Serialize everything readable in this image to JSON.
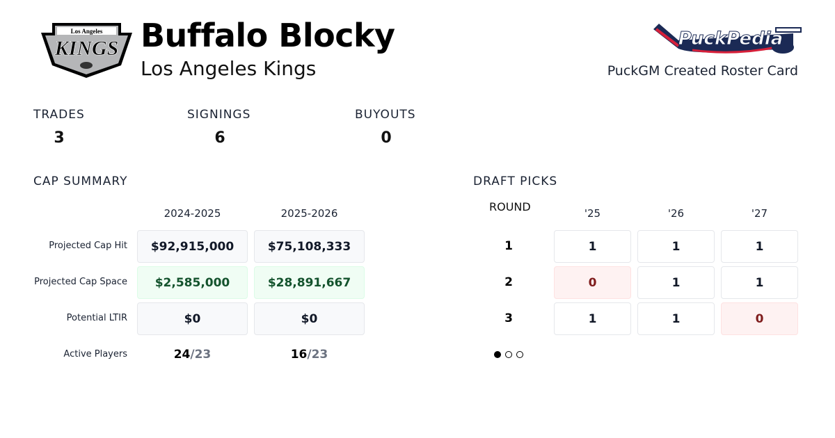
{
  "header": {
    "player_name": "Buffalo Blocky",
    "team_name": "Los Angeles Kings",
    "team_logo": {
      "icon": "kings-logo",
      "text_top": "Los Angeles",
      "text_main": "KINGS"
    },
    "brand_logo": {
      "icon": "puckpedia-logo",
      "text": "PuckPedia",
      "colors": {
        "navy": "#1b2a55",
        "red": "#d6203a"
      }
    },
    "card_label": "PuckGM Created Roster Card"
  },
  "stats": [
    {
      "label": "TRADES",
      "value": "3"
    },
    {
      "label": "SIGNINGS",
      "value": "6"
    },
    {
      "label": "BUYOUTS",
      "value": "0"
    }
  ],
  "cap_summary": {
    "title": "CAP SUMMARY",
    "seasons": [
      "2024-2025",
      "2025-2026"
    ],
    "rows": [
      {
        "label": "Projected Cap Hit",
        "values": [
          "$92,915,000",
          "$75,108,333"
        ],
        "style": "neutral"
      },
      {
        "label": "Projected Cap Space",
        "values": [
          "$2,585,000",
          "$28,891,667"
        ],
        "style": "positive"
      },
      {
        "label": "Potential LTIR",
        "values": [
          "$0",
          "$0"
        ],
        "style": "neutral"
      }
    ],
    "active_players": {
      "label": "Active Players",
      "values": [
        {
          "count": "24",
          "max": "/23"
        },
        {
          "count": "16",
          "max": "/23"
        }
      ]
    }
  },
  "draft_picks": {
    "title": "DRAFT PICKS",
    "round_label": "ROUND",
    "years": [
      "'25",
      "'26",
      "'27"
    ],
    "rounds": [
      {
        "round": "1",
        "picks": [
          "1",
          "1",
          "1"
        ]
      },
      {
        "round": "2",
        "picks": [
          "0",
          "1",
          "1"
        ]
      },
      {
        "round": "3",
        "picks": [
          "1",
          "1",
          "0"
        ]
      }
    ],
    "pagination": {
      "pages": 3,
      "current": 1
    }
  },
  "colors": {
    "positive_bg": "#f0fdf4",
    "positive_text": "#14532d",
    "missing_bg": "#fef2f2",
    "missing_text": "#7f1d1d"
  }
}
